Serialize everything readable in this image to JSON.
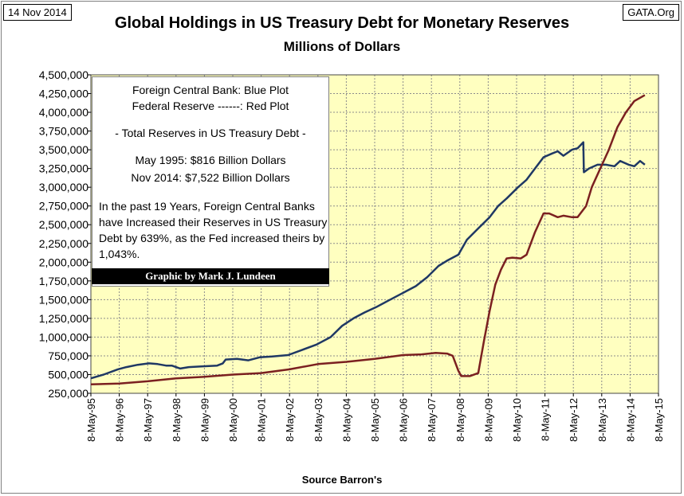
{
  "header": {
    "date": "14 Nov 2014",
    "site": "GATA.Org",
    "title": "Global Holdings in US Treasury Debt for Monetary Reserves",
    "subtitle": "Millions of Dollars"
  },
  "legend_box": {
    "line1": "Foreign Central Bank: Blue Plot",
    "line2": "Federal Reserve ------: Red Plot",
    "line3": "- Total Reserves in US Treasury Debt -",
    "line4": "May 1995:   $816 Billion Dollars",
    "line5": "Nov 2014: $7,522 Billion Dollars",
    "paragraph": "In the past 19 Years, Foreign Central Banks have Increased their Reserves in US Treasury Debt by 639%, as the Fed increased theirs by 1,043%.",
    "credit": "Graphic by Mark J. Lundeen"
  },
  "footer": {
    "source": "Source Barron's"
  },
  "colors": {
    "plot_bg": "#ffffc0",
    "foreign": "#1f3864",
    "fed": "#7b2020",
    "grid": "#8c8c8c"
  },
  "chart_data": {
    "type": "line",
    "xlim": [
      1995.35,
      2015.35
    ],
    "ylim": [
      250000,
      4500000
    ],
    "ytick_labels": [
      "250,000",
      "500,000",
      "750,000",
      "1,000,000",
      "1,250,000",
      "1,500,000",
      "1,750,000",
      "2,000,000",
      "2,250,000",
      "2,500,000",
      "2,750,000",
      "3,000,000",
      "3,250,000",
      "3,500,000",
      "3,750,000",
      "4,000,000",
      "4,250,000",
      "4,500,000"
    ],
    "yticks": [
      250000,
      500000,
      750000,
      1000000,
      1250000,
      1500000,
      1750000,
      2000000,
      2250000,
      2500000,
      2750000,
      3000000,
      3250000,
      3500000,
      3750000,
      4000000,
      4250000,
      4500000
    ],
    "xtick_labels": [
      "8-May-95",
      "8-May-96",
      "8-May-97",
      "8-May-98",
      "8-May-99",
      "8-May-00",
      "8-May-01",
      "8-May-02",
      "8-May-03",
      "8-May-04",
      "8-May-05",
      "8-May-06",
      "8-May-07",
      "8-May-08",
      "8-May-09",
      "8-May-10",
      "8-May-11",
      "8-May-12",
      "8-May-13",
      "8-May-14",
      "8-May-15"
    ],
    "xticks": [
      1995.35,
      1996.35,
      1997.35,
      1998.35,
      1999.35,
      2000.35,
      2001.35,
      2002.35,
      2003.35,
      2004.35,
      2005.35,
      2006.35,
      2007.35,
      2008.35,
      2009.35,
      2010.35,
      2011.35,
      2012.35,
      2013.35,
      2014.35,
      2015.35
    ],
    "grid": true,
    "series": [
      {
        "key": "foreign",
        "x": [
          1995.35,
          1995.8,
          1996.3,
          1996.6,
          1997.0,
          1997.4,
          1997.7,
          1998.0,
          1998.2,
          1998.5,
          1998.8,
          1999.3,
          1999.8,
          2000.0,
          2000.1,
          2000.5,
          2000.9,
          2001.3,
          2001.7,
          2002.3,
          2002.8,
          2003.3,
          2003.8,
          2004.2,
          2004.6,
          2005.0,
          2005.4,
          2005.8,
          2006.3,
          2006.8,
          2007.2,
          2007.6,
          2007.9,
          2008.3,
          2008.6,
          2009.0,
          2009.4,
          2009.7,
          2010.0,
          2010.4,
          2010.7,
          2011.0,
          2011.3,
          2011.6,
          2011.8,
          2012.0,
          2012.3,
          2012.5,
          2012.7,
          2012.72,
          2012.9,
          2013.2,
          2013.5,
          2013.8,
          2014.0,
          2014.3,
          2014.5,
          2014.7,
          2014.87
        ],
        "y": [
          450000,
          500000,
          570000,
          600000,
          630000,
          650000,
          640000,
          620000,
          620000,
          580000,
          600000,
          610000,
          620000,
          650000,
          700000,
          710000,
          690000,
          730000,
          740000,
          760000,
          830000,
          900000,
          1000000,
          1150000,
          1250000,
          1330000,
          1400000,
          1480000,
          1580000,
          1680000,
          1800000,
          1950000,
          2020000,
          2100000,
          2300000,
          2450000,
          2600000,
          2750000,
          2850000,
          3000000,
          3100000,
          3250000,
          3400000,
          3450000,
          3480000,
          3420000,
          3500000,
          3520000,
          3600000,
          3200000,
          3250000,
          3300000,
          3300000,
          3280000,
          3350000,
          3300000,
          3280000,
          3350000,
          3300000
        ]
      },
      {
        "key": "fed",
        "x": [
          1995.35,
          1996.35,
          1997.35,
          1998.35,
          1999.35,
          2000.35,
          2001.35,
          2002.35,
          2003.35,
          2004.35,
          2005.35,
          2006.35,
          2007.0,
          2007.5,
          2007.9,
          2008.1,
          2008.3,
          2008.4,
          2008.7,
          2009.0,
          2009.2,
          2009.4,
          2009.6,
          2009.8,
          2010.0,
          2010.2,
          2010.5,
          2010.7,
          2011.0,
          2011.3,
          2011.5,
          2011.8,
          2012.0,
          2012.3,
          2012.5,
          2012.8,
          2013.0,
          2013.3,
          2013.6,
          2013.9,
          2014.2,
          2014.5,
          2014.87
        ],
        "y": [
          370000,
          380000,
          410000,
          450000,
          470000,
          500000,
          520000,
          570000,
          640000,
          670000,
          710000,
          760000,
          770000,
          790000,
          780000,
          750000,
          550000,
          480000,
          480000,
          520000,
          950000,
          1350000,
          1700000,
          1900000,
          2050000,
          2060000,
          2050000,
          2100000,
          2400000,
          2650000,
          2650000,
          2600000,
          2620000,
          2600000,
          2600000,
          2750000,
          3000000,
          3250000,
          3500000,
          3800000,
          4000000,
          4150000,
          4230000
        ]
      }
    ]
  }
}
